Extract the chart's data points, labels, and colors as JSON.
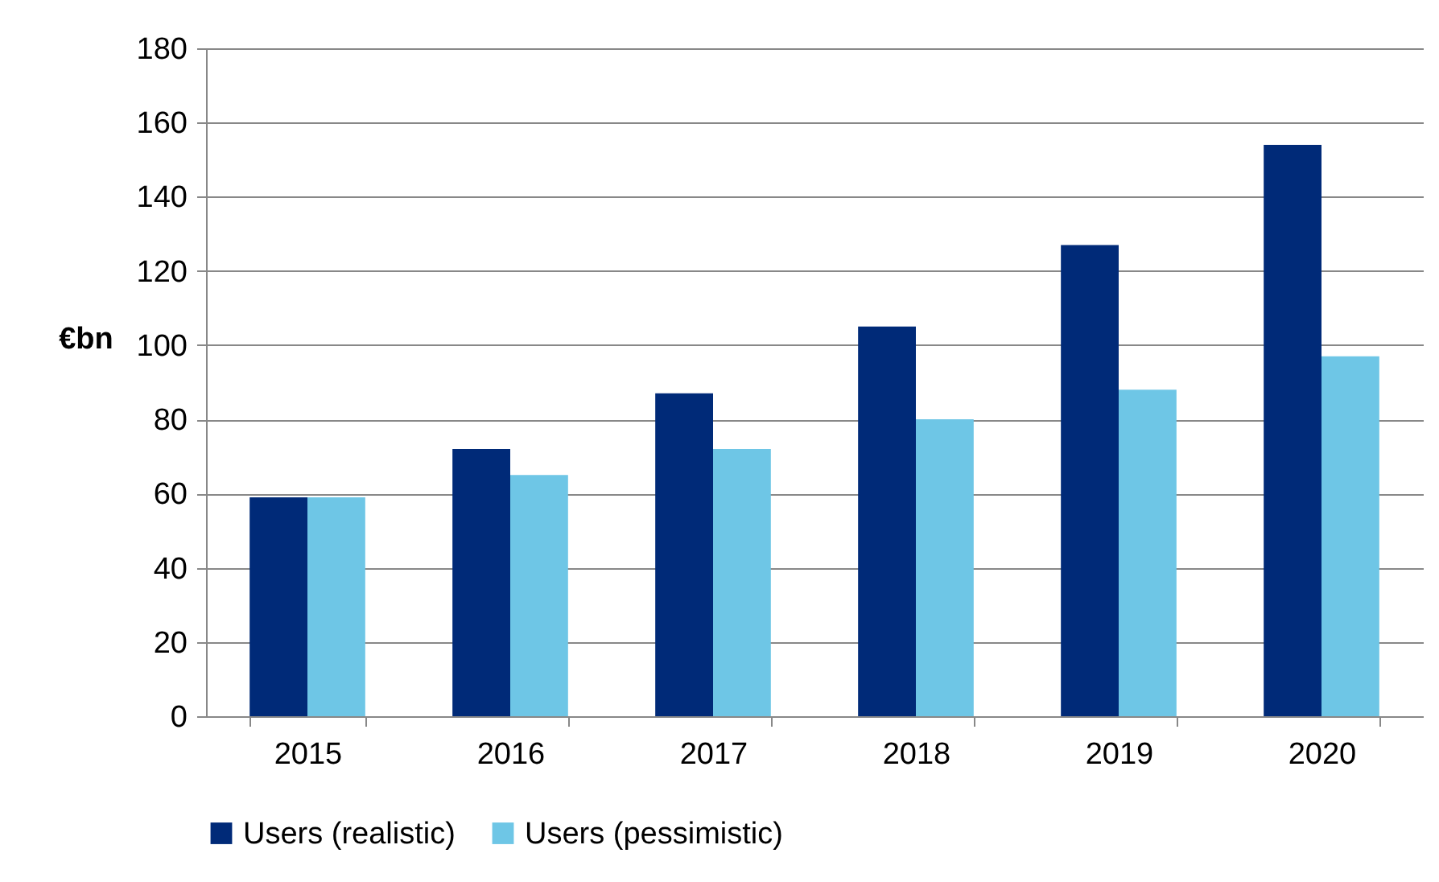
{
  "chart_data": {
    "type": "bar",
    "ylabel": "€bn",
    "categories": [
      "2015",
      "2016",
      "2017",
      "2018",
      "2019",
      "2020"
    ],
    "series": [
      {
        "name": "Users (realistic)",
        "color": "#002a78",
        "values": [
          59,
          72,
          87,
          105,
          127,
          154
        ]
      },
      {
        "name": "Users (pessimistic)",
        "color": "#6ec6e6",
        "values": [
          59,
          65,
          72,
          80,
          88,
          97
        ]
      }
    ],
    "ylim": [
      0,
      180
    ],
    "yticks": [
      0,
      20,
      40,
      60,
      80,
      100,
      120,
      140,
      160,
      180
    ],
    "grid": "y",
    "legend": "bottom"
  }
}
